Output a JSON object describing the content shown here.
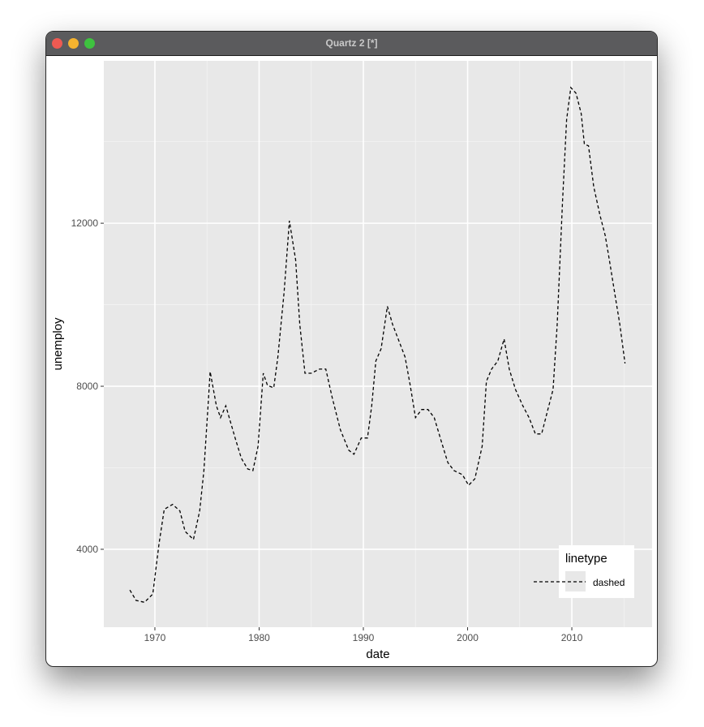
{
  "window": {
    "title": "Quartz 2 [*]",
    "buttons": [
      "close",
      "minimize",
      "zoom"
    ],
    "button_colors": [
      "#ee5a52",
      "#f5b32f",
      "#3ec23f"
    ]
  },
  "chart_data": {
    "type": "line",
    "xlabel": "date",
    "ylabel": "unemploy",
    "xlim": [
      1965.1,
      2017.7
    ],
    "ylim": [
      2088,
      15984
    ],
    "xticks": [
      1970,
      1980,
      1990,
      2000,
      2010
    ],
    "xtick_labels": [
      "1970",
      "1980",
      "1990",
      "2000",
      "2010"
    ],
    "yticks": [
      4000,
      8000,
      12000
    ],
    "ytick_labels": [
      "4000",
      "8000",
      "12000"
    ],
    "grid": true,
    "line_style": "dashed",
    "line_color": "#000000",
    "panel_color": "#e8e8e8",
    "legend": {
      "title": "linetype",
      "entries": [
        "dashed"
      ],
      "placement": "bottom-right"
    },
    "x": [
      1967.6,
      1968.2,
      1969.0,
      1969.8,
      1970.4,
      1970.9,
      1971.7,
      1972.4,
      1972.9,
      1973.7,
      1974.3,
      1974.7,
      1975.1,
      1975.3,
      1975.9,
      1976.3,
      1976.8,
      1977.7,
      1978.3,
      1978.9,
      1979.4,
      1979.9,
      1980.4,
      1980.8,
      1981.4,
      1981.8,
      1982.4,
      1982.9,
      1983.5,
      1983.9,
      1984.4,
      1985.0,
      1985.8,
      1986.4,
      1987.0,
      1987.8,
      1988.6,
      1989.1,
      1989.8,
      1990.4,
      1990.8,
      1991.2,
      1991.7,
      1992.3,
      1992.8,
      1993.4,
      1994.0,
      1994.5,
      1995.0,
      1995.6,
      1996.2,
      1996.8,
      1997.5,
      1998.1,
      1998.7,
      1999.5,
      2000.1,
      2000.7,
      2001.4,
      2001.8,
      2002.3,
      2002.9,
      2003.5,
      2004.0,
      2004.6,
      2005.3,
      2005.9,
      2006.5,
      2007.1,
      2007.7,
      2008.2,
      2008.6,
      2009.1,
      2009.5,
      2009.9,
      2010.4,
      2010.9,
      2011.2,
      2011.6,
      2012.1,
      2012.7,
      2013.2,
      2013.6,
      2014.1,
      2014.6,
      2015.1
    ],
    "y": [
      3000,
      2745,
      2700,
      2900,
      4140,
      4980,
      5100,
      4940,
      4440,
      4240,
      4940,
      5930,
      7520,
      8360,
      7520,
      7230,
      7520,
      6730,
      6230,
      5970,
      5930,
      6530,
      8320,
      8020,
      7960,
      8720,
      10310,
      12060,
      11100,
      9520,
      8320,
      8320,
      8420,
      8420,
      7730,
      6930,
      6430,
      6330,
      6730,
      6730,
      7520,
      8620,
      8920,
      9960,
      9520,
      9120,
      8720,
      8020,
      7230,
      7430,
      7430,
      7230,
      6630,
      6130,
      5930,
      5830,
      5570,
      5730,
      6530,
      8120,
      8420,
      8620,
      9160,
      8420,
      7920,
      7520,
      7230,
      6830,
      6830,
      7430,
      7920,
      9520,
      12500,
      14540,
      15330,
      15190,
      14690,
      13940,
      13900,
      12900,
      12200,
      11700,
      11100,
      10310,
      9520,
      8560
    ]
  }
}
